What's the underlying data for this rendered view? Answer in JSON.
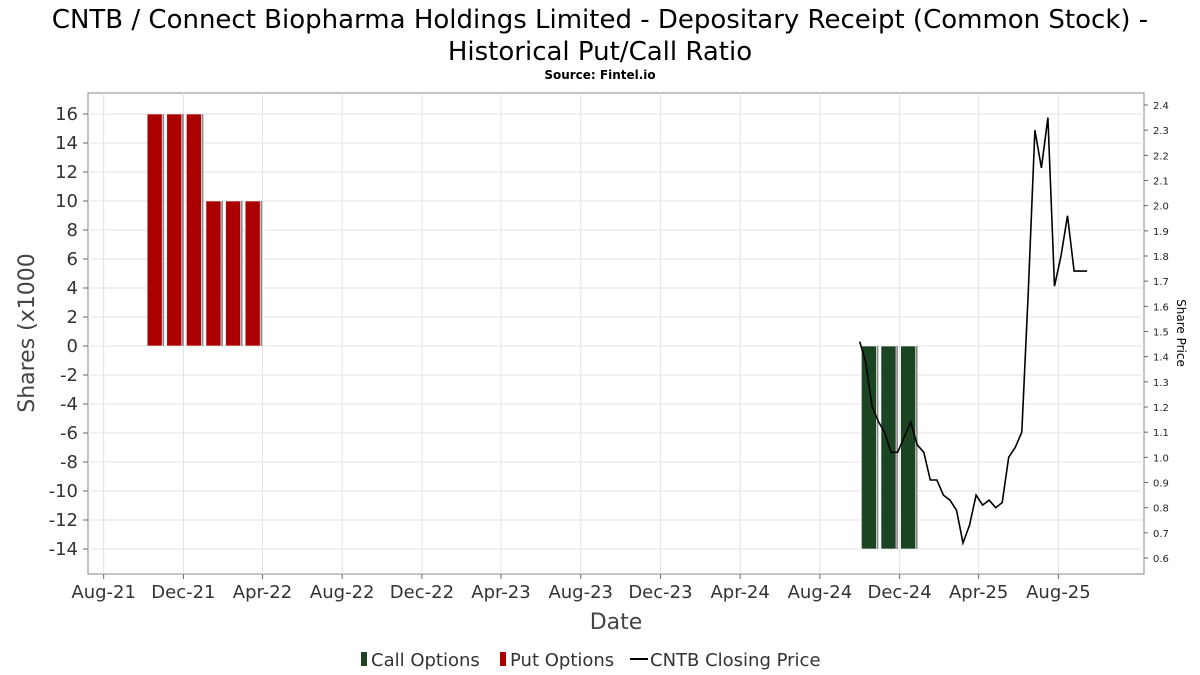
{
  "chart_data": {
    "type": "bar",
    "title_line1": "CNTB / Connect Biopharma Holdings Limited - Depositary Receipt (Common Stock) -",
    "title_line2": "Historical Put/Call Ratio",
    "subtitle": "Source: Fintel.io",
    "xlabel": "Date",
    "ylabel": "Shares (x1000",
    "ylabel_right": "Share Price",
    "ylim": [
      -15.5,
      17.5
    ],
    "ylim_right": [
      0.55,
      2.45
    ],
    "xlim": [
      "2021-07-08",
      "2025-12-10"
    ],
    "grid": true,
    "legend_position": "bottom",
    "y_ticks": [
      16,
      14,
      12,
      10,
      8,
      6,
      4,
      2,
      0,
      -2,
      -4,
      -6,
      -8,
      -10,
      -12,
      -14
    ],
    "y_tick_labels": [
      "16",
      "14",
      "12",
      "10",
      "8",
      "6",
      "4",
      "2",
      "0",
      "-2",
      "-4",
      "-6",
      "-8",
      "-10",
      "-12",
      "-14"
    ],
    "y_right_ticks": [
      2.4,
      2.3,
      2.2,
      2.1,
      2.0,
      1.9,
      1.8,
      1.7,
      1.6,
      1.5,
      1.4,
      1.3,
      1.2,
      1.1,
      1.0,
      0.9,
      0.8,
      0.7,
      0.6
    ],
    "y_right_tick_labels": [
      "2.4",
      "2.3",
      "2.2",
      "2.1",
      "2.0",
      "1.9",
      "1.8",
      "1.7",
      "1.6",
      "1.5",
      "1.4",
      "1.3",
      "1.2",
      "1.1",
      "1.0",
      "0.9",
      "0.8",
      "0.7",
      "0.6"
    ],
    "x_ticks": [
      "2021-08-01",
      "2021-12-01",
      "2022-04-01",
      "2022-08-01",
      "2022-12-01",
      "2023-04-01",
      "2023-08-01",
      "2023-12-01",
      "2024-04-01",
      "2024-08-01",
      "2024-12-01",
      "2025-04-01",
      "2025-08-01"
    ],
    "x_tick_labels": [
      "Aug-21",
      "Dec-21",
      "Apr-22",
      "Aug-22",
      "Dec-22",
      "Apr-23",
      "Aug-23",
      "Dec-23",
      "Apr-24",
      "Aug-24",
      "Dec-24",
      "Apr-25",
      "Aug-25"
    ],
    "series": [
      {
        "name": "Put Options",
        "kind": "bar",
        "color": "#aa0000",
        "x": [
          "2021-10-18",
          "2021-11-17",
          "2021-12-17",
          "2022-01-16",
          "2022-02-15",
          "2022-03-17"
        ],
        "values": [
          16,
          16,
          16,
          10,
          10,
          10
        ]
      },
      {
        "name": "Call Options",
        "kind": "bar",
        "color": "#1b4522",
        "x": [
          "2024-10-15",
          "2024-11-14",
          "2024-12-14"
        ],
        "values": [
          -14,
          -14,
          -14
        ]
      },
      {
        "name": "CNTB Closing Price",
        "kind": "line",
        "color": "#000000",
        "x": [
          "2024-10-01",
          "2024-10-10",
          "2024-10-20",
          "2024-10-30",
          "2024-11-08",
          "2024-11-18",
          "2024-11-28",
          "2024-12-08",
          "2024-12-18",
          "2024-12-28",
          "2025-01-07",
          "2025-01-17",
          "2025-01-27",
          "2025-02-06",
          "2025-02-16",
          "2025-02-26",
          "2025-03-08",
          "2025-03-18",
          "2025-03-28",
          "2025-04-07",
          "2025-04-17",
          "2025-04-27",
          "2025-05-07",
          "2025-05-17",
          "2025-05-27",
          "2025-06-06",
          "2025-06-16",
          "2025-06-26",
          "2025-07-06",
          "2025-07-16",
          "2025-07-26",
          "2025-08-05",
          "2025-08-15",
          "2025-08-25",
          "2025-09-04",
          "2025-09-14"
        ],
        "values": [
          1.46,
          1.38,
          1.2,
          1.14,
          1.1,
          1.02,
          1.02,
          1.08,
          1.14,
          1.05,
          1.02,
          0.91,
          0.91,
          0.85,
          0.83,
          0.79,
          0.66,
          0.73,
          0.85,
          0.81,
          0.83,
          0.8,
          0.82,
          1.0,
          1.04,
          1.1,
          1.66,
          2.3,
          2.15,
          2.35,
          1.68,
          1.8,
          1.96,
          1.74,
          1.74,
          1.74
        ]
      }
    ]
  },
  "legend": {
    "items": [
      {
        "label": "Call Options",
        "color": "#1b4522",
        "kind": "bar"
      },
      {
        "label": "Put Options",
        "color": "#aa0000",
        "kind": "bar"
      },
      {
        "label": "CNTB Closing Price",
        "color": "#000000",
        "kind": "line"
      }
    ]
  }
}
